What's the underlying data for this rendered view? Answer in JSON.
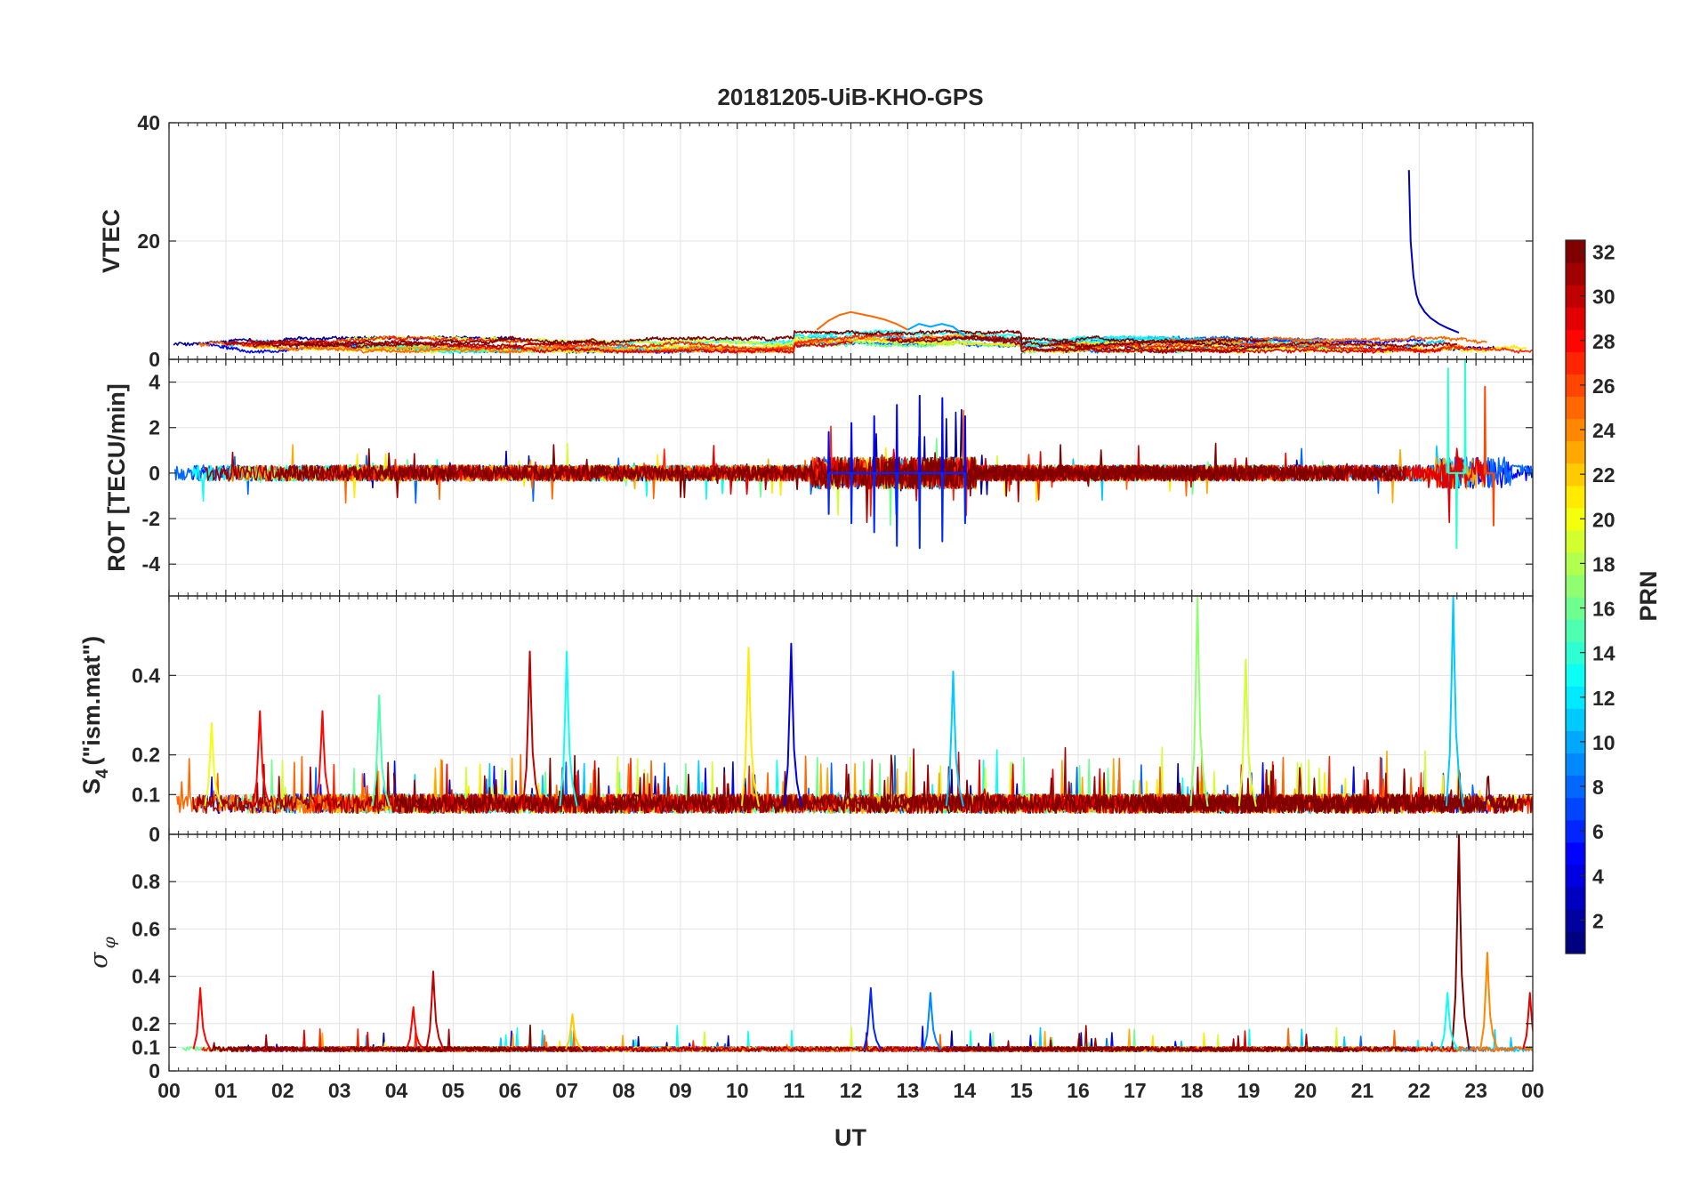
{
  "chart_data": {
    "type": "line",
    "title": "20181205-UiB-KHO-GPS",
    "xlabel": "UT",
    "x_ticks": [
      "00",
      "01",
      "02",
      "03",
      "04",
      "05",
      "06",
      "07",
      "08",
      "09",
      "10",
      "11",
      "12",
      "13",
      "14",
      "15",
      "16",
      "17",
      "18",
      "19",
      "20",
      "21",
      "22",
      "23",
      "00"
    ],
    "xlim": [
      0,
      24
    ],
    "grid": true,
    "colorbar": {
      "label": "PRN",
      "range": [
        1,
        32
      ],
      "ticks": [
        "2",
        "4",
        "6",
        "8",
        "10",
        "12",
        "14",
        "16",
        "18",
        "20",
        "22",
        "24",
        "26",
        "28",
        "30",
        "32"
      ],
      "colormap": "jet"
    },
    "panels": [
      {
        "id": "vtec",
        "ylabel": "VTEC",
        "ylim": [
          0,
          40
        ],
        "yticks": [
          0,
          20,
          40
        ],
        "ytick_labels": [
          "0",
          "20",
          "40"
        ],
        "baseline": 2.5,
        "noise": 0.5,
        "features": [
          {
            "prn": 3,
            "x": [
              21.82,
              21.85,
              21.9,
              21.95,
              22.0,
              22.1,
              22.2,
              22.35,
              22.5,
              22.7
            ],
            "y": [
              32,
              20,
              14,
              11,
              9.5,
              8,
              7,
              6,
              5.3,
              4.5
            ]
          },
          {
            "prn": 25,
            "x": [
              11.4,
              11.6,
              11.8,
              12.0,
              12.2,
              12.4,
              12.6,
              12.8,
              13.0
            ],
            "y": [
              5,
              6.5,
              7.5,
              8,
              7.6,
              7.2,
              6.7,
              6,
              5
            ]
          },
          {
            "prn": 10,
            "x": [
              13.0,
              13.2,
              13.4,
              13.6,
              13.8,
              14.0
            ],
            "y": [
              5,
              6,
              5.5,
              6,
              5.5,
              4
            ]
          }
        ]
      },
      {
        "id": "rot",
        "ylabel": "ROT [TECU/min]",
        "ylim": [
          -5.4,
          5
        ],
        "yticks": [
          -4,
          -2,
          0,
          2,
          4
        ],
        "ytick_labels": [
          "-4",
          "-2",
          "0",
          "2",
          "4"
        ],
        "baseline": 0,
        "noise": 0.35,
        "features": [
          {
            "prn": 5,
            "x": [
              11.6,
              12.0,
              12.4,
              12.8,
              13.2,
              13.6,
              14.0
            ],
            "y": [
              1.8,
              2.2,
              2.5,
              3.0,
              3.4,
              3.3,
              2.5
            ]
          },
          {
            "prn": 6,
            "x": [
              11.6,
              12.0,
              12.4,
              12.8,
              13.2,
              13.6,
              14.0
            ],
            "y": [
              -1.8,
              -2.2,
              -2.6,
              -3.2,
              -3.3,
              -3.0,
              -2.2
            ]
          },
          {
            "prn": 14,
            "x": [
              22.5,
              22.65,
              22.8
            ],
            "y": [
              4.6,
              -3.3,
              5.0
            ]
          },
          {
            "prn": 26,
            "x": [
              23.15,
              23.3
            ],
            "y": [
              3.8,
              -2.3
            ]
          }
        ]
      },
      {
        "id": "s4",
        "ylabel": "S4 (\"ism.mat\")",
        "ylim": [
          0,
          0.6
        ],
        "yticks": [
          0,
          0.1,
          0.2,
          0.4
        ],
        "ytick_labels": [
          "0",
          "0.1",
          "0.2",
          "0.4"
        ],
        "baseline": 0.07,
        "noise": 0.03,
        "features": [
          {
            "prn": 30,
            "x": [
              6.35
            ],
            "y": [
              0.46
            ]
          },
          {
            "prn": 13,
            "x": [
              7.0
            ],
            "y": [
              0.46
            ]
          },
          {
            "prn": 21,
            "x": [
              10.2
            ],
            "y": [
              0.47
            ]
          },
          {
            "prn": 4,
            "x": [
              10.95
            ],
            "y": [
              0.48
            ]
          },
          {
            "prn": 11,
            "x": [
              13.8
            ],
            "y": [
              0.41
            ]
          },
          {
            "prn": 17,
            "x": [
              18.1
            ],
            "y": [
              0.6
            ]
          },
          {
            "prn": 19,
            "x": [
              18.95
            ],
            "y": [
              0.44
            ]
          },
          {
            "prn": 11,
            "x": [
              22.6
            ],
            "y": [
              0.6
            ]
          },
          {
            "prn": 28,
            "x": [
              1.6
            ],
            "y": [
              0.31
            ]
          },
          {
            "prn": 28,
            "x": [
              2.7
            ],
            "y": [
              0.31
            ]
          },
          {
            "prn": 15,
            "x": [
              3.7
            ],
            "y": [
              0.35
            ]
          },
          {
            "prn": 20,
            "x": [
              0.75
            ],
            "y": [
              0.28
            ]
          }
        ]
      },
      {
        "id": "sigma_phi",
        "ylabel": "σφ",
        "ylim": [
          0,
          1
        ],
        "yticks": [
          0,
          0.1,
          0.2,
          0.4,
          0.6,
          0.8
        ],
        "ytick_labels": [
          "0",
          "0.1",
          "0.2",
          "0.4",
          "0.6",
          "0.8"
        ],
        "baseline": 0.09,
        "noise": 0.015,
        "features": [
          {
            "prn": 32,
            "x": [
              22.7
            ],
            "y": [
              1.0
            ]
          },
          {
            "prn": 24,
            "x": [
              23.2
            ],
            "y": [
              0.5
            ]
          },
          {
            "prn": 30,
            "x": [
              4.65
            ],
            "y": [
              0.42
            ]
          },
          {
            "prn": 28,
            "x": [
              0.55
            ],
            "y": [
              0.35
            ]
          },
          {
            "prn": 6,
            "x": [
              12.35
            ],
            "y": [
              0.35
            ]
          },
          {
            "prn": 9,
            "x": [
              13.4
            ],
            "y": [
              0.33
            ]
          },
          {
            "prn": 13,
            "x": [
              22.5
            ],
            "y": [
              0.33
            ]
          },
          {
            "prn": 29,
            "x": [
              23.95
            ],
            "y": [
              0.33
            ]
          },
          {
            "prn": 28,
            "x": [
              4.3
            ],
            "y": [
              0.27
            ]
          },
          {
            "prn": 22,
            "x": [
              7.1
            ],
            "y": [
              0.24
            ]
          }
        ]
      }
    ]
  }
}
